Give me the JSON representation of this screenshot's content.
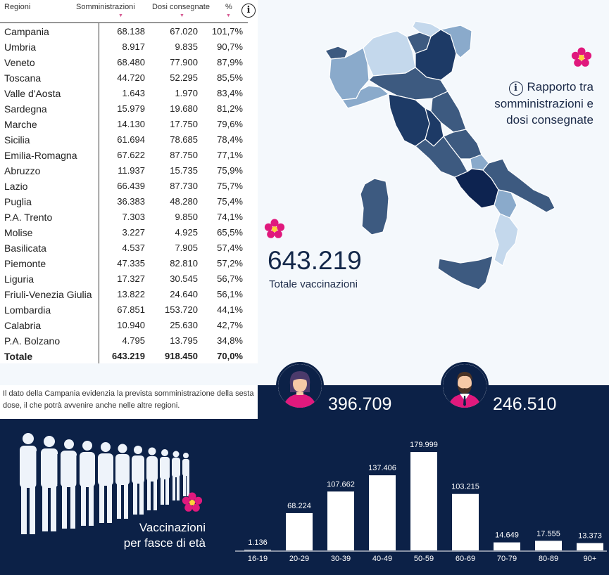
{
  "table": {
    "headers": {
      "region": "Regioni",
      "administered": "Somministrazioni",
      "delivered": "Dosi consegnate",
      "percent": "%"
    },
    "sort_icon": "sort-triangle-icon",
    "rows": [
      {
        "region": "Campania",
        "administered": "68.138",
        "delivered": "67.020",
        "percent": "101,7%"
      },
      {
        "region": "Umbria",
        "administered": "8.917",
        "delivered": "9.835",
        "percent": "90,7%"
      },
      {
        "region": "Veneto",
        "administered": "68.480",
        "delivered": "77.900",
        "percent": "87,9%"
      },
      {
        "region": "Toscana",
        "administered": "44.720",
        "delivered": "52.295",
        "percent": "85,5%"
      },
      {
        "region": "Valle d'Aosta",
        "administered": "1.643",
        "delivered": "1.970",
        "percent": "83,4%"
      },
      {
        "region": "Sardegna",
        "administered": "15.979",
        "delivered": "19.680",
        "percent": "81,2%"
      },
      {
        "region": "Marche",
        "administered": "14.130",
        "delivered": "17.750",
        "percent": "79,6%"
      },
      {
        "region": "Sicilia",
        "administered": "61.694",
        "delivered": "78.685",
        "percent": "78,4%"
      },
      {
        "region": "Emilia-Romagna",
        "administered": "67.622",
        "delivered": "87.750",
        "percent": "77,1%"
      },
      {
        "region": "Abruzzo",
        "administered": "11.937",
        "delivered": "15.735",
        "percent": "75,9%"
      },
      {
        "region": "Lazio",
        "administered": "66.439",
        "delivered": "87.730",
        "percent": "75,7%"
      },
      {
        "region": "Puglia",
        "administered": "36.383",
        "delivered": "48.280",
        "percent": "75,4%"
      },
      {
        "region": "P.A. Trento",
        "administered": "7.303",
        "delivered": "9.850",
        "percent": "74,1%"
      },
      {
        "region": "Molise",
        "administered": "3.227",
        "delivered": "4.925",
        "percent": "65,5%"
      },
      {
        "region": "Basilicata",
        "administered": "4.537",
        "delivered": "7.905",
        "percent": "57,4%"
      },
      {
        "region": "Piemonte",
        "administered": "47.335",
        "delivered": "82.810",
        "percent": "57,2%"
      },
      {
        "region": "Liguria",
        "administered": "17.327",
        "delivered": "30.545",
        "percent": "56,7%"
      },
      {
        "region": "Friuli-Venezia Giulia",
        "administered": "13.822",
        "delivered": "24.640",
        "percent": "56,1%"
      },
      {
        "region": "Lombardia",
        "administered": "67.851",
        "delivered": "153.720",
        "percent": "44,1%"
      },
      {
        "region": "Calabria",
        "administered": "10.940",
        "delivered": "25.630",
        "percent": "42,7%"
      },
      {
        "region": "P.A. Bolzano",
        "administered": "4.795",
        "delivered": "13.795",
        "percent": "34,8%"
      }
    ],
    "total": {
      "region": "Totale",
      "administered": "643.219",
      "delivered": "918.450",
      "percent": "70,0%"
    }
  },
  "note": "Il dato della Campania evidenzia la prevista somministrazione della sesta dose, il che potrà avvenire anche nelle altre regioni.",
  "map": {
    "caption_lines": [
      "Rapporto tra",
      "somministrazioni e",
      "dosi consegnate"
    ],
    "info_icon": "info-icon",
    "colors": {
      "dark": "#0d2350",
      "mid": "#3d5a80",
      "light": "#8aaacb",
      "pale": "#c4d8ec"
    }
  },
  "totals": {
    "value": "643.219",
    "label": "Totale vaccinazioni"
  },
  "sex": {
    "female": {
      "value": "396.709",
      "icon": "woman-avatar-icon"
    },
    "male": {
      "value": "246.510",
      "icon": "man-avatar-icon"
    }
  },
  "age": {
    "title_lines": [
      "Vaccinazioni",
      "per fasce di età"
    ],
    "icon": "crowd-icon"
  },
  "accent_colors": {
    "navy": "#0c2147",
    "pink": "#e0197d"
  },
  "chart_data": {
    "type": "bar",
    "title": "Vaccinazioni per fasce di età",
    "categories": [
      "16-19",
      "20-29",
      "30-39",
      "40-49",
      "50-59",
      "60-69",
      "70-79",
      "80-89",
      "90+"
    ],
    "values": [
      1136,
      68224,
      107662,
      137406,
      179999,
      103215,
      14649,
      17555,
      13373
    ],
    "value_labels": [
      "1.136",
      "68.224",
      "107.662",
      "137.406",
      "179.999",
      "103.215",
      "14.649",
      "17.555",
      "13.373"
    ],
    "ylim": [
      0,
      180000
    ],
    "xlabel": "",
    "ylabel": ""
  }
}
